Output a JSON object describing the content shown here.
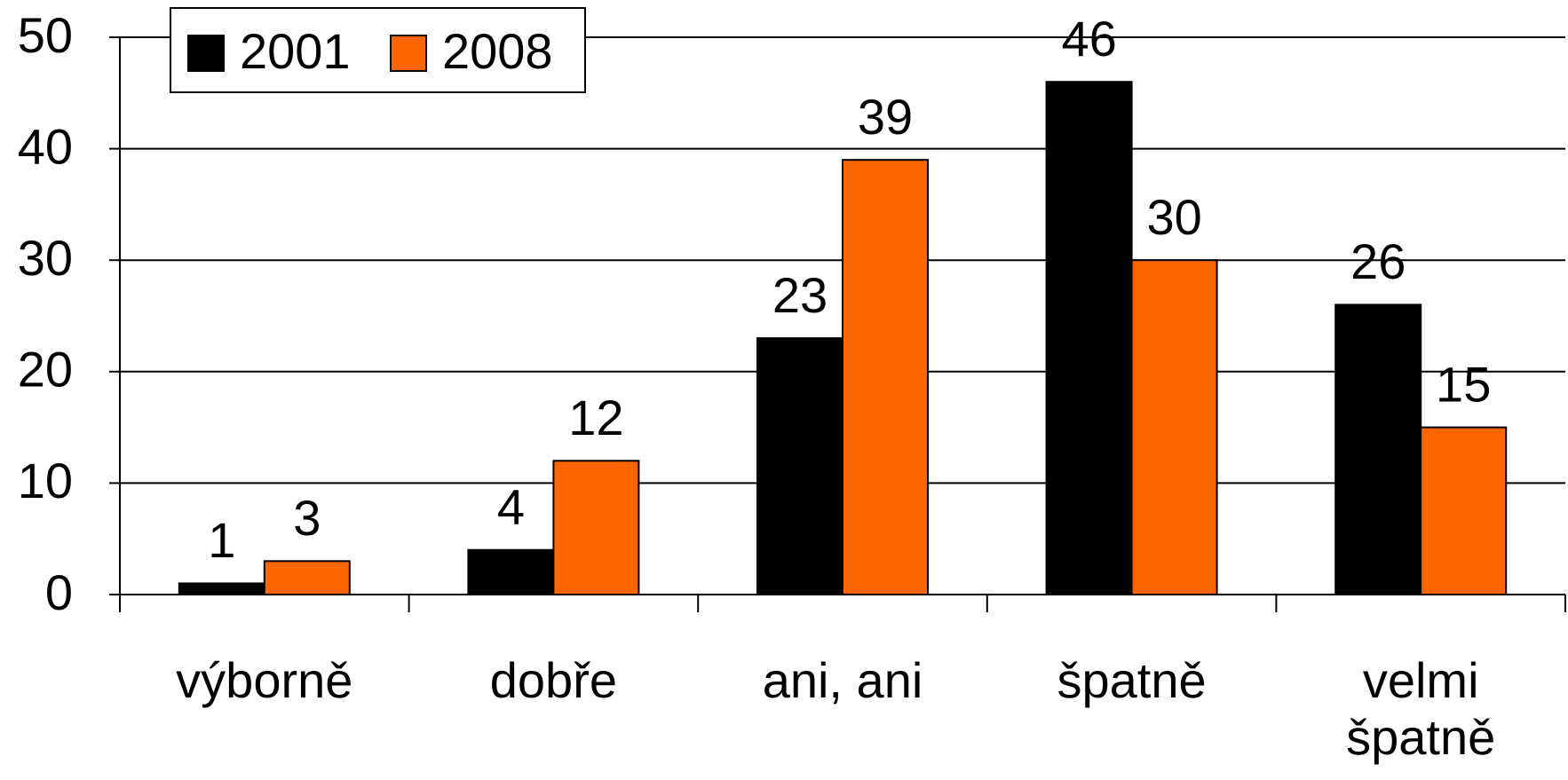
{
  "chart_data": {
    "type": "bar",
    "categories": [
      "výborně",
      "dobře",
      "ani, ani",
      "špatně",
      "velmi špatně"
    ],
    "series": [
      {
        "name": "2001",
        "color": "#000000",
        "values": [
          1,
          4,
          23,
          46,
          26
        ]
      },
      {
        "name": "2008",
        "color": "#ff6600",
        "values": [
          3,
          12,
          39,
          30,
          15
        ]
      }
    ],
    "ylim": [
      0,
      50
    ],
    "yticks": [
      0,
      10,
      20,
      30,
      40,
      50
    ],
    "grid": true,
    "legend": "top-left"
  }
}
